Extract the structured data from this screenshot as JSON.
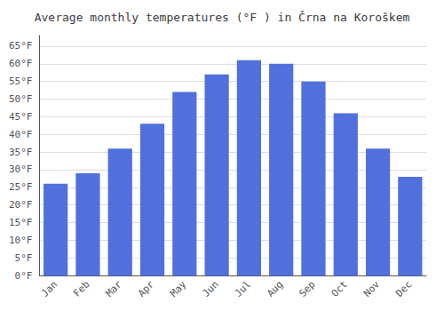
{
  "chart_data": {
    "type": "bar",
    "title": "Average monthly temperatures (°F ) in Črna na Koroškem",
    "categories": [
      "Jan",
      "Feb",
      "Mar",
      "Apr",
      "May",
      "Jun",
      "Jul",
      "Aug",
      "Sep",
      "Oct",
      "Nov",
      "Dec"
    ],
    "values": [
      26,
      29,
      36,
      43,
      52,
      57,
      61,
      60,
      55,
      46,
      36,
      28
    ],
    "ylim": [
      0,
      68
    ],
    "yticks": [
      {
        "value": 0,
        "label": "0°F"
      },
      {
        "value": 5,
        "label": "5°F"
      },
      {
        "value": 10,
        "label": "10°F"
      },
      {
        "value": 15,
        "label": "15°F"
      },
      {
        "value": 20,
        "label": "20°F"
      },
      {
        "value": 25,
        "label": "25°F"
      },
      {
        "value": 30,
        "label": "30°F"
      },
      {
        "value": 35,
        "label": "35°F"
      },
      {
        "value": 40,
        "label": "40°F"
      },
      {
        "value": 45,
        "label": "45°F"
      },
      {
        "value": 50,
        "label": "50°F"
      },
      {
        "value": 55,
        "label": "55°F"
      },
      {
        "value": 60,
        "label": "60°F"
      },
      {
        "value": 65,
        "label": "65°F"
      }
    ],
    "grid": true
  }
}
